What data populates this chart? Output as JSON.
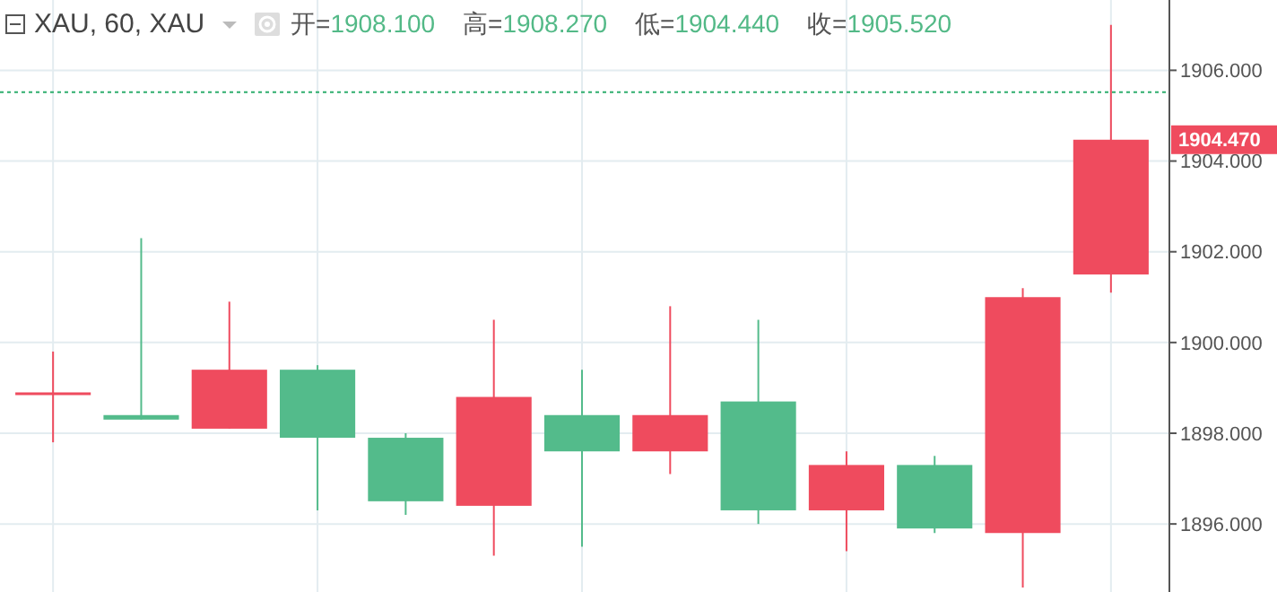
{
  "chart_data": {
    "type": "candlestick",
    "title": "XAU, 60, XAU",
    "annotations": [
      "开=1908.100",
      "高=1908.270",
      "低=1904.440",
      "收=1905.520",
      "1904.470"
    ],
    "categories": [
      null,
      null,
      null,
      null,
      null,
      null,
      null,
      null,
      null,
      null,
      null,
      null,
      null
    ],
    "ohlc": [
      [
        1898.9,
        1899.8,
        1897.8,
        1898.9
      ],
      [
        1898.4,
        1902.3,
        1898.3,
        1898.3
      ],
      [
        1898.1,
        1900.9,
        1898.1,
        1899.4
      ],
      [
        1899.4,
        1899.5,
        1896.3,
        1897.9
      ],
      [
        1897.9,
        1898.0,
        1896.2,
        1896.5
      ],
      [
        1896.4,
        1900.5,
        1895.3,
        1898.8
      ],
      [
        1898.4,
        1899.4,
        1895.5,
        1897.6
      ],
      [
        1897.6,
        1900.8,
        1897.1,
        1898.4
      ],
      [
        1898.7,
        1900.5,
        1896.0,
        1896.3
      ],
      [
        1896.3,
        1897.6,
        1895.4,
        1897.3
      ],
      [
        1897.3,
        1897.5,
        1895.8,
        1895.9
      ],
      [
        1895.8,
        1901.2,
        1894.6,
        1901.0
      ],
      [
        1901.5,
        1907.0,
        1901.1,
        1904.47
      ]
    ],
    "colors": [
      "#ef4b5e",
      "#53bb8b",
      "#ef4b5e",
      "#53bb8b",
      "#53bb8b",
      "#ef4b5e",
      "#53bb8b",
      "#ef4b5e",
      "#53bb8b",
      "#ef4b5e",
      "#53bb8b",
      "#ef4b5e",
      "#ef4b5e"
    ],
    "ylim": [
      1894.5,
      1907.55
    ],
    "yticks": [
      {
        "value": 1896,
        "label": "1896.000"
      },
      {
        "value": 1898,
        "label": "1898.000"
      },
      {
        "value": 1900,
        "label": "1900.000"
      },
      {
        "value": 1902,
        "label": "1902.000"
      },
      {
        "value": 1904,
        "label": "1904.000"
      },
      {
        "value": 1906,
        "label": "1906.000"
      }
    ],
    "tick_labels": "y",
    "grid": true,
    "ref_lines": [
      {
        "axis": "y",
        "value": 1905.52,
        "color": "#2fae6e",
        "line_style": "dotted"
      }
    ]
  }
}
